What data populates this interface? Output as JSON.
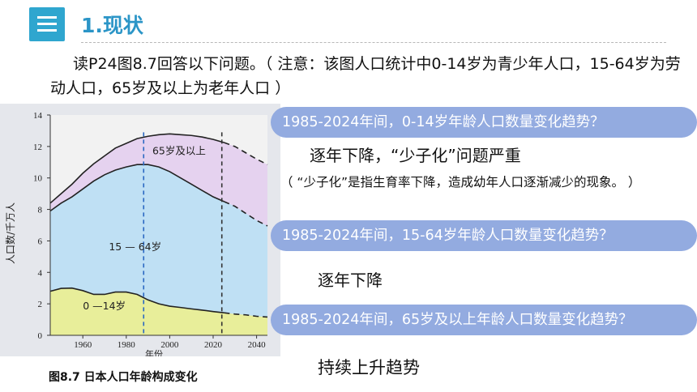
{
  "header": {
    "title": "1.现状",
    "icon": "list-icon",
    "accent": "#2fa6cf"
  },
  "intro": "读P24图8.7回答以下问题。（ 注意：该图人口统计中0-14岁为青少年人口，15-64岁为劳动人口，65岁及以上为老年人口 ）",
  "caption": "图8.7  日本人口年龄构成变化",
  "questions": [
    {
      "q": "1985-2024年间，0-14岁年龄人口数量变化趋势？",
      "a": "逐年下降，“少子化”问题严重"
    },
    {
      "q": "1985-2024年间，15-64岁年龄人口数量变化趋势？",
      "a": "逐年下降"
    },
    {
      "q": "1985-2024年间，65岁及以上年龄人口数量变化趋势？",
      "a": "持续上升趋势"
    }
  ],
  "note": "（ “少子化”是指生育率下降，造成幼年人口逐渐减少的现象。 ）",
  "chart_data": {
    "type": "area",
    "xlabel": "年份",
    "ylabel": "人口数/千万人",
    "xlim": [
      1945,
      2045
    ],
    "ylim": [
      0,
      14
    ],
    "x_ticks": [
      1960,
      1980,
      2000,
      2020,
      2040
    ],
    "y_ticks": [
      0,
      2,
      4,
      6,
      8,
      10,
      12,
      14
    ],
    "series": [
      {
        "name": "0—14岁",
        "color": "#e8ee9a",
        "x": [
          1945,
          1950,
          1955,
          1960,
          1965,
          1970,
          1975,
          1980,
          1985,
          1990,
          1995,
          2000,
          2005,
          2010,
          2015,
          2020,
          2025,
          2030,
          2035,
          2040,
          2045
        ],
        "values": [
          2.8,
          2.98,
          3.0,
          2.84,
          2.6,
          2.6,
          2.75,
          2.75,
          2.6,
          2.25,
          2.0,
          1.85,
          1.77,
          1.68,
          1.6,
          1.51,
          1.43,
          1.35,
          1.3,
          1.21,
          1.16
        ]
      },
      {
        "name": "15—64岁",
        "color": "#bfe0f4",
        "x": [
          1945,
          1950,
          1955,
          1960,
          1965,
          1970,
          1975,
          1980,
          1985,
          1990,
          1995,
          2000,
          2005,
          2010,
          2015,
          2020,
          2025,
          2030,
          2035,
          2040,
          2045
        ],
        "values": [
          7.9,
          8.4,
          8.8,
          9.3,
          9.8,
          10.2,
          10.5,
          10.7,
          10.85,
          10.85,
          10.7,
          10.4,
          10.0,
          9.6,
          9.2,
          8.8,
          8.5,
          8.2,
          7.75,
          7.3,
          6.95
        ]
      },
      {
        "name": "65岁及以上",
        "color": "#e5d2ef",
        "x": [
          1945,
          1950,
          1955,
          1960,
          1965,
          1970,
          1975,
          1980,
          1985,
          1990,
          1995,
          2000,
          2005,
          2010,
          2015,
          2020,
          2025,
          2030,
          2035,
          2040,
          2045
        ],
        "values": [
          8.4,
          9.0,
          9.6,
          10.3,
          10.9,
          11.4,
          11.9,
          12.2,
          12.5,
          12.65,
          12.75,
          12.8,
          12.75,
          12.7,
          12.6,
          12.45,
          12.25,
          12.0,
          11.6,
          11.2,
          10.85
        ]
      }
    ],
    "forecast_from": 2025,
    "markers": [
      {
        "x": 1988,
        "style": "dashed",
        "color": "#2a68c2"
      },
      {
        "x": 2024,
        "style": "dashed",
        "color": "#333333"
      }
    ],
    "series_labels": [
      "65岁及以上",
      "15 — 64岁",
      "0 —14岁"
    ]
  }
}
